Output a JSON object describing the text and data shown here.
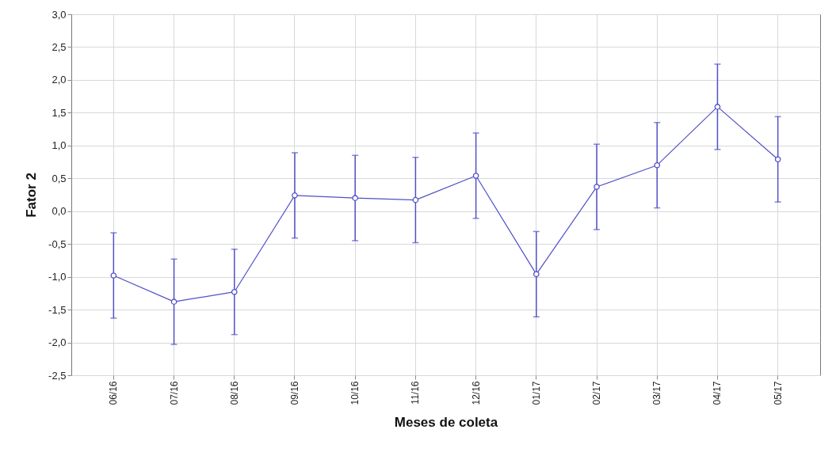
{
  "chart_data": {
    "type": "line",
    "xlabel": "Meses de coleta",
    "ylabel": "Fator 2",
    "categories": [
      "06/16",
      "07/16",
      "08/16",
      "09/16",
      "10/16",
      "11/16",
      "12/16",
      "01/17",
      "02/17",
      "03/17",
      "04/17",
      "05/17"
    ],
    "series": [
      {
        "color": "#5050c8",
        "values": [
          -0.98,
          -1.38,
          -1.23,
          0.24,
          0.2,
          0.17,
          0.54,
          -0.96,
          0.37,
          0.7,
          1.59,
          0.79
        ],
        "errors": [
          0.65,
          0.65,
          0.65,
          0.65,
          0.65,
          0.65,
          0.65,
          0.65,
          0.65,
          0.65,
          0.65,
          0.65
        ]
      }
    ],
    "ylim": [
      -2.5,
      3
    ],
    "yticks": [
      {
        "value": -2.5,
        "label": "-2,5"
      },
      {
        "value": -2,
        "label": "-2,0"
      },
      {
        "value": -1.5,
        "label": "-1,5"
      },
      {
        "value": -1,
        "label": "-1,0"
      },
      {
        "value": -0.5,
        "label": "-0,5"
      },
      {
        "value": 0,
        "label": "0,0"
      },
      {
        "value": 0.5,
        "label": "0,5"
      },
      {
        "value": 1,
        "label": "1,0"
      },
      {
        "value": 1.5,
        "label": "1,5"
      },
      {
        "value": 2,
        "label": "2,0"
      },
      {
        "value": 2.5,
        "label": "2,5"
      },
      {
        "value": 3,
        "label": "3,0"
      }
    ],
    "grid": true,
    "marker": "circle",
    "line_style": "solid"
  }
}
